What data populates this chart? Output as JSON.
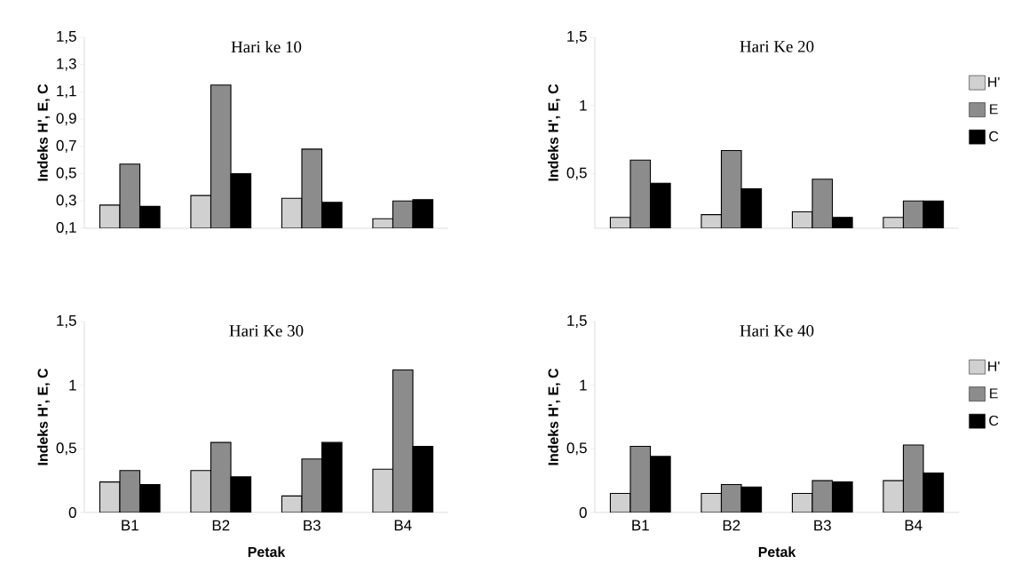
{
  "chart_data": [
    {
      "type": "bar",
      "title": "Hari ke 10",
      "ylabel": "Indeks H', E, C",
      "categories": [
        null,
        null,
        null,
        null
      ],
      "tick_labels": "y",
      "ylim": [
        0.1,
        1.5
      ],
      "yticks": [
        {
          "value": 0.1,
          "label": "0,1"
        },
        {
          "value": 0.3,
          "label": "0,3"
        },
        {
          "value": 0.5,
          "label": "0,5"
        },
        {
          "value": 0.7,
          "label": "0,7"
        },
        {
          "value": 0.9,
          "label": "0,9"
        },
        {
          "value": 1.1,
          "label": "1,1"
        },
        {
          "value": 1.3,
          "label": "1,3"
        },
        {
          "value": 1.5,
          "label": "1,5"
        }
      ],
      "series": [
        {
          "color": "#d0d0d0",
          "values": [
            0.27,
            0.34,
            0.32,
            0.17
          ]
        },
        {
          "color": "#8c8c8c",
          "values": [
            0.57,
            1.15,
            0.68,
            0.3
          ]
        },
        {
          "color": "#000000",
          "values": [
            0.26,
            0.5,
            0.29,
            0.31
          ]
        }
      ]
    },
    {
      "type": "bar",
      "title": "Hari Ke 20",
      "ylabel": "Indeks H', E, C",
      "categories": [
        null,
        null,
        null,
        null
      ],
      "tick_labels": "y",
      "ylim": [
        0.1,
        1.5
      ],
      "legend": "right",
      "yticks": [
        {
          "value": 0.5,
          "label": "0,5"
        },
        1,
        {
          "value": 1.5,
          "label": "1,5"
        }
      ],
      "series": [
        {
          "name": "H'",
          "color": "#d0d0d0",
          "values": [
            0.18,
            0.2,
            0.22,
            0.18
          ]
        },
        {
          "name": "E",
          "color": "#8c8c8c",
          "values": [
            0.6,
            0.67,
            0.46,
            0.3
          ]
        },
        {
          "name": "C",
          "color": "#000000",
          "values": [
            0.43,
            0.39,
            0.18,
            0.3
          ]
        }
      ]
    },
    {
      "type": "bar",
      "title": "Hari Ke 30",
      "xlabel": "Petak",
      "ylabel": "Indeks H', E, C",
      "categories": [
        "B1",
        "B2",
        "B3",
        "B4"
      ],
      "ylim": [
        0,
        1.5
      ],
      "yticks": [
        0,
        {
          "value": 0.5,
          "label": "0,5"
        },
        1,
        {
          "value": 1.5,
          "label": "1,5"
        }
      ],
      "series": [
        {
          "color": "#d0d0d0",
          "values": [
            0.24,
            0.33,
            0.13,
            0.34
          ]
        },
        {
          "color": "#8c8c8c",
          "values": [
            0.33,
            0.55,
            0.42,
            1.12
          ]
        },
        {
          "color": "#000000",
          "values": [
            0.22,
            0.28,
            0.55,
            0.52
          ]
        }
      ]
    },
    {
      "type": "bar",
      "title": "Hari Ke 40",
      "xlabel": "Petak",
      "ylabel": "Indeks H', E, C",
      "categories": [
        "B1",
        "B2",
        "B3",
        "B4"
      ],
      "ylim": [
        0,
        1.5
      ],
      "legend": "right",
      "yticks": [
        0,
        {
          "value": 0.5,
          "label": "0,5"
        },
        1,
        {
          "value": 1.5,
          "label": "1,5"
        }
      ],
      "series": [
        {
          "name": "H'",
          "color": "#d0d0d0",
          "values": [
            0.15,
            0.15,
            0.15,
            0.25
          ]
        },
        {
          "name": "E",
          "color": "#8c8c8c",
          "values": [
            0.52,
            0.22,
            0.25,
            0.53
          ]
        },
        {
          "name": "C",
          "color": "#000000",
          "values": [
            0.44,
            0.2,
            0.24,
            0.31
          ]
        }
      ]
    }
  ]
}
